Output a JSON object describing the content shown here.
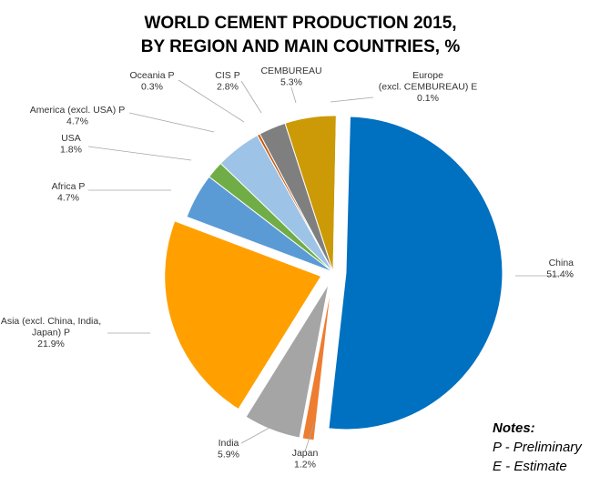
{
  "chart_data": {
    "type": "pie",
    "title_lines": [
      "WORLD CEMENT PRODUCTION 2015,",
      "BY REGION AND MAIN COUNTRIES, %"
    ],
    "slices": [
      {
        "label_lines": [
          "China"
        ],
        "value_text": "51.4%",
        "value": 51.4,
        "color": "#0070c0",
        "exploded": true
      },
      {
        "label_lines": [
          "Japan"
        ],
        "value_text": "1.2%",
        "value": 1.2,
        "color": "#ed7d31",
        "exploded": true
      },
      {
        "label_lines": [
          "India"
        ],
        "value_text": "5.9%",
        "value": 5.9,
        "color": "#a5a5a5",
        "exploded": true
      },
      {
        "label_lines": [
          "Asia (excl. China, India,",
          "Japan) P"
        ],
        "value_text": "21.9%",
        "value": 21.9,
        "color": "#ffa000",
        "exploded": true
      },
      {
        "label_lines": [
          "Africa P"
        ],
        "value_text": "4.7%",
        "value": 4.7,
        "color": "#5b9bd5",
        "exploded": false
      },
      {
        "label_lines": [
          "USA"
        ],
        "value_text": "1.8%",
        "value": 1.8,
        "color": "#70ad47",
        "exploded": false
      },
      {
        "label_lines": [
          "America (excl. USA) P"
        ],
        "value_text": "4.7%",
        "value": 4.7,
        "color": "#9dc3e6",
        "exploded": false
      },
      {
        "label_lines": [
          "Oceania P"
        ],
        "value_text": "0.3%",
        "value": 0.3,
        "color": "#c55a11",
        "exploded": false
      },
      {
        "label_lines": [
          "CIS P"
        ],
        "value_text": "2.8%",
        "value": 2.8,
        "color": "#7f7f7f",
        "exploded": false
      },
      {
        "label_lines": [
          "CEMBUREAU"
        ],
        "value_text": "5.3%",
        "value": 5.3,
        "color": "#cc9a06",
        "exploded": false
      },
      {
        "label_lines": [
          "Europe",
          "(excl. CEMBUREAU)  E"
        ],
        "value_text": "0.1%",
        "value": 0.1,
        "color": "#4bacc6",
        "exploded": false
      }
    ]
  },
  "notes": {
    "heading": "Notes:",
    "line1": "P - Preliminary",
    "line2": "E - Estimate"
  }
}
